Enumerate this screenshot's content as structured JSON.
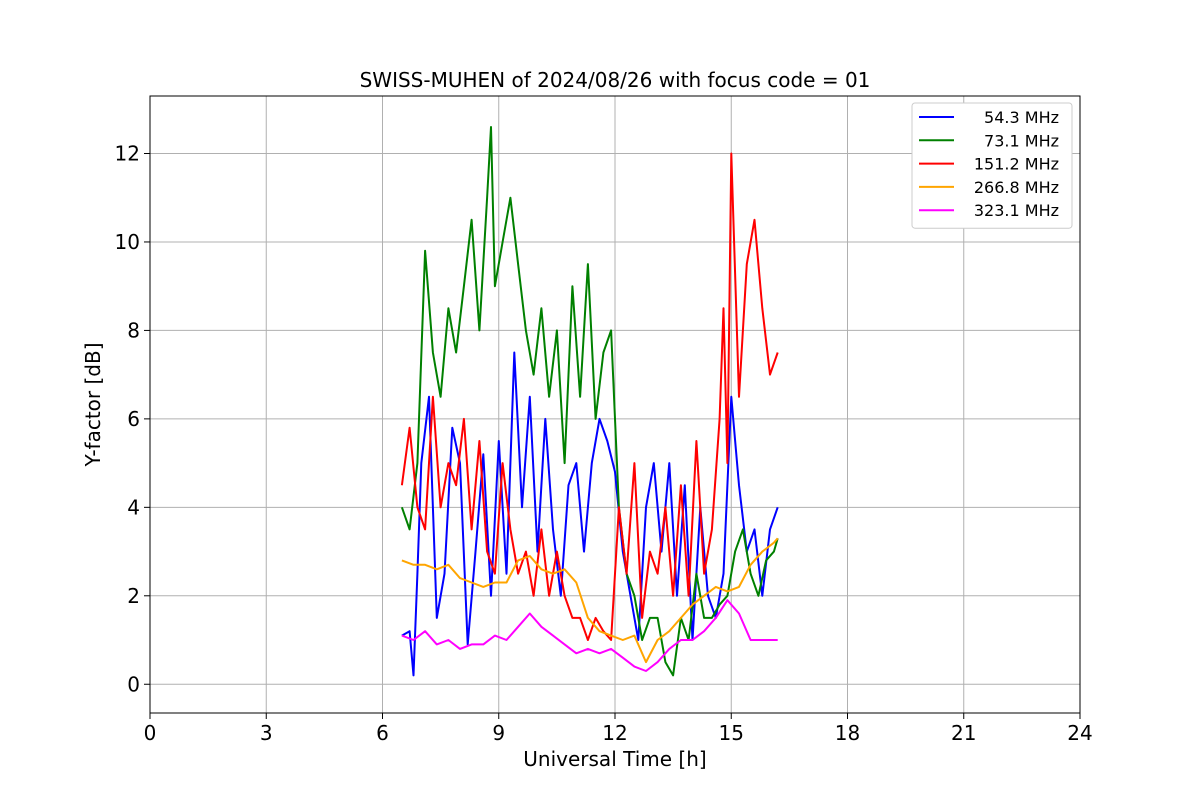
{
  "chart_data": {
    "type": "line",
    "title": "SWISS-MUHEN of 2024/08/26 with focus code = 01",
    "xlabel": "Universal Time [h]",
    "ylabel": "Y-factor [dB]",
    "xlim": [
      0,
      24
    ],
    "ylim": [
      -0.65,
      13.3
    ],
    "xticks": [
      0,
      3,
      6,
      9,
      12,
      15,
      18,
      21,
      24
    ],
    "yticks": [
      0,
      2,
      4,
      6,
      8,
      10,
      12
    ],
    "grid": true,
    "legend_position": "top-right",
    "series": [
      {
        "name": "54.3 MHz",
        "color": "#0000ff",
        "x": [
          6.5,
          6.7,
          6.8,
          6.9,
          7.0,
          7.2,
          7.4,
          7.6,
          7.8,
          8.0,
          8.2,
          8.4,
          8.6,
          8.8,
          9.0,
          9.2,
          9.4,
          9.6,
          9.8,
          10.0,
          10.2,
          10.4,
          10.6,
          10.8,
          11.0,
          11.2,
          11.4,
          11.6,
          11.8,
          12.0,
          12.2,
          12.4,
          12.6,
          12.8,
          13.0,
          13.2,
          13.4,
          13.6,
          13.8,
          14.0,
          14.2,
          14.4,
          14.6,
          14.8,
          15.0,
          15.2,
          15.4,
          15.6,
          15.8,
          16.0,
          16.2
        ],
        "y": [
          1.1,
          1.2,
          0.2,
          2.5,
          5.0,
          6.5,
          1.5,
          2.5,
          5.8,
          5.0,
          0.9,
          3.0,
          5.2,
          2.0,
          5.5,
          2.5,
          7.5,
          4.0,
          6.5,
          3.0,
          6.0,
          3.5,
          2.0,
          4.5,
          5.0,
          3.0,
          5.0,
          6.0,
          5.5,
          4.8,
          3.0,
          2.0,
          1.0,
          4.0,
          5.0,
          3.0,
          5.0,
          2.0,
          4.5,
          1.0,
          4.0,
          2.0,
          1.5,
          2.5,
          6.5,
          4.5,
          3.0,
          3.5,
          2.0,
          3.5,
          4.0
        ]
      },
      {
        "name": "73.1 MHz",
        "color": "#008000",
        "x": [
          6.5,
          6.7,
          6.9,
          7.1,
          7.3,
          7.5,
          7.7,
          7.9,
          8.1,
          8.3,
          8.5,
          8.7,
          8.8,
          8.9,
          9.1,
          9.3,
          9.5,
          9.7,
          9.9,
          10.1,
          10.3,
          10.5,
          10.7,
          10.9,
          11.1,
          11.3,
          11.5,
          11.7,
          11.9,
          12.1,
          12.3,
          12.5,
          12.7,
          12.9,
          13.1,
          13.3,
          13.5,
          13.7,
          13.9,
          14.1,
          14.3,
          14.5,
          14.7,
          14.9,
          15.1,
          15.3,
          15.5,
          15.7,
          15.9,
          16.1,
          16.2
        ],
        "y": [
          4.0,
          3.5,
          5.0,
          9.8,
          7.5,
          6.5,
          8.5,
          7.5,
          9.0,
          10.5,
          8.0,
          11.0,
          12.6,
          9.0,
          10.0,
          11.0,
          9.5,
          8.0,
          7.0,
          8.5,
          6.5,
          8.0,
          5.0,
          9.0,
          6.5,
          9.5,
          6.0,
          7.5,
          8.0,
          4.0,
          2.5,
          2.0,
          1.0,
          1.5,
          1.5,
          0.5,
          0.2,
          1.5,
          1.0,
          2.5,
          1.5,
          1.5,
          1.8,
          2.0,
          3.0,
          3.5,
          2.5,
          2.0,
          2.8,
          3.0,
          3.3
        ]
      },
      {
        "name": "151.2 MHz",
        "color": "#ff0000",
        "x": [
          6.5,
          6.7,
          6.9,
          7.1,
          7.3,
          7.5,
          7.7,
          7.9,
          8.1,
          8.3,
          8.5,
          8.7,
          8.9,
          9.1,
          9.3,
          9.5,
          9.7,
          9.9,
          10.1,
          10.3,
          10.5,
          10.7,
          10.9,
          11.1,
          11.3,
          11.5,
          11.7,
          11.9,
          12.1,
          12.3,
          12.5,
          12.7,
          12.9,
          13.1,
          13.3,
          13.5,
          13.7,
          13.9,
          14.1,
          14.3,
          14.5,
          14.7,
          14.8,
          14.9,
          15.0,
          15.2,
          15.4,
          15.6,
          15.8,
          16.0,
          16.2
        ],
        "y": [
          4.5,
          5.8,
          4.0,
          3.5,
          6.5,
          4.0,
          5.0,
          4.5,
          6.0,
          3.5,
          5.5,
          3.0,
          2.5,
          5.0,
          3.5,
          2.5,
          3.0,
          2.0,
          3.5,
          2.0,
          3.0,
          2.0,
          1.5,
          1.5,
          1.0,
          1.5,
          1.2,
          1.0,
          4.0,
          2.5,
          5.0,
          1.5,
          3.0,
          2.5,
          4.0,
          2.0,
          4.5,
          2.0,
          5.5,
          2.5,
          3.5,
          6.0,
          8.5,
          5.0,
          12.0,
          6.5,
          9.5,
          10.5,
          8.5,
          7.0,
          7.5
        ]
      },
      {
        "name": "266.8 MHz",
        "color": "#ffa500",
        "x": [
          6.5,
          6.8,
          7.1,
          7.4,
          7.7,
          8.0,
          8.3,
          8.6,
          8.9,
          9.2,
          9.5,
          9.8,
          10.1,
          10.4,
          10.7,
          11.0,
          11.3,
          11.6,
          11.9,
          12.2,
          12.5,
          12.8,
          13.1,
          13.4,
          13.7,
          14.0,
          14.3,
          14.6,
          14.9,
          15.2,
          15.5,
          15.8,
          16.1,
          16.2
        ],
        "y": [
          2.8,
          2.7,
          2.7,
          2.6,
          2.7,
          2.4,
          2.3,
          2.2,
          2.3,
          2.3,
          2.8,
          2.9,
          2.6,
          2.5,
          2.6,
          2.3,
          1.5,
          1.2,
          1.1,
          1.0,
          1.1,
          0.5,
          1.0,
          1.2,
          1.5,
          1.8,
          2.0,
          2.2,
          2.1,
          2.2,
          2.7,
          3.0,
          3.2,
          3.3
        ]
      },
      {
        "name": "323.1 MHz",
        "color": "#ff00ff",
        "x": [
          6.5,
          6.8,
          7.1,
          7.4,
          7.7,
          8.0,
          8.3,
          8.6,
          8.9,
          9.2,
          9.5,
          9.8,
          10.1,
          10.4,
          10.7,
          11.0,
          11.3,
          11.6,
          11.9,
          12.2,
          12.5,
          12.8,
          13.1,
          13.4,
          13.7,
          14.0,
          14.3,
          14.6,
          14.9,
          15.2,
          15.5,
          15.8,
          16.1,
          16.2
        ],
        "y": [
          1.1,
          1.0,
          1.2,
          0.9,
          1.0,
          0.8,
          0.9,
          0.9,
          1.1,
          1.0,
          1.3,
          1.6,
          1.3,
          1.1,
          0.9,
          0.7,
          0.8,
          0.7,
          0.8,
          0.6,
          0.4,
          0.3,
          0.5,
          0.8,
          1.0,
          1.0,
          1.2,
          1.5,
          1.9,
          1.6,
          1.0,
          1.0,
          1.0,
          1.0
        ]
      }
    ]
  }
}
